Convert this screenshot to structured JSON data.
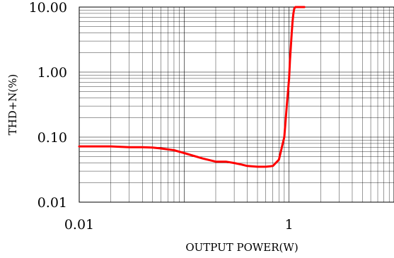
{
  "chart_data": {
    "type": "line",
    "title": "",
    "xlabel": "OUTPUT POWER(W)",
    "ylabel": "THD+N(%)",
    "x_scale": "log",
    "y_scale": "log",
    "xlim": [
      0.01,
      10
    ],
    "ylim": [
      0.01,
      10
    ],
    "grid": true,
    "x_tick_labels": [
      "0.01",
      "1"
    ],
    "x_tick_values": [
      0.01,
      1
    ],
    "y_tick_labels": [
      "10.00",
      "1.00",
      "0.10",
      "0.01"
    ],
    "y_tick_values": [
      10,
      1,
      0.1,
      0.01
    ],
    "series": [
      {
        "color": "#ff0000",
        "x": [
          0.01,
          0.02,
          0.03,
          0.04,
          0.05,
          0.06,
          0.08,
          0.1,
          0.15,
          0.2,
          0.25,
          0.3,
          0.35,
          0.4,
          0.5,
          0.6,
          0.7,
          0.8,
          0.9,
          0.95,
          1.0,
          1.02,
          1.04,
          1.06,
          1.08,
          1.1,
          1.12,
          1.15,
          1.2,
          1.3,
          1.4
        ],
        "y": [
          0.072,
          0.072,
          0.07,
          0.07,
          0.069,
          0.067,
          0.063,
          0.057,
          0.047,
          0.042,
          0.042,
          0.04,
          0.038,
          0.036,
          0.035,
          0.035,
          0.036,
          0.045,
          0.1,
          0.3,
          0.8,
          1.5,
          2.5,
          4.0,
          6.0,
          8.0,
          9.5,
          10.0,
          10.0,
          10.0,
          10.0
        ]
      }
    ]
  }
}
